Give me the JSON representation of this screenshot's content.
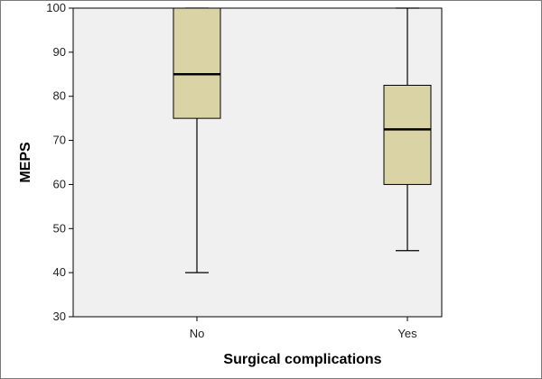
{
  "chart_data": {
    "type": "box",
    "xlabel": "Surgical complications",
    "ylabel": "MEPS",
    "ylim": [
      30,
      100
    ],
    "yticks": [
      30,
      40,
      50,
      60,
      70,
      80,
      90,
      100
    ],
    "categories": [
      "No",
      "Yes"
    ],
    "boxes": [
      {
        "category": "No",
        "min": 40,
        "q1": 75,
        "median": 85,
        "q3": 100,
        "max": 100
      },
      {
        "category": "Yes",
        "min": 45,
        "q1": 60,
        "median": 72.5,
        "q3": 82.5,
        "max": 100
      }
    ],
    "grid": false,
    "colors": {
      "plot_background": "#f0f0f0",
      "box_fill": "#d9d3a5",
      "line": "#000000"
    }
  }
}
